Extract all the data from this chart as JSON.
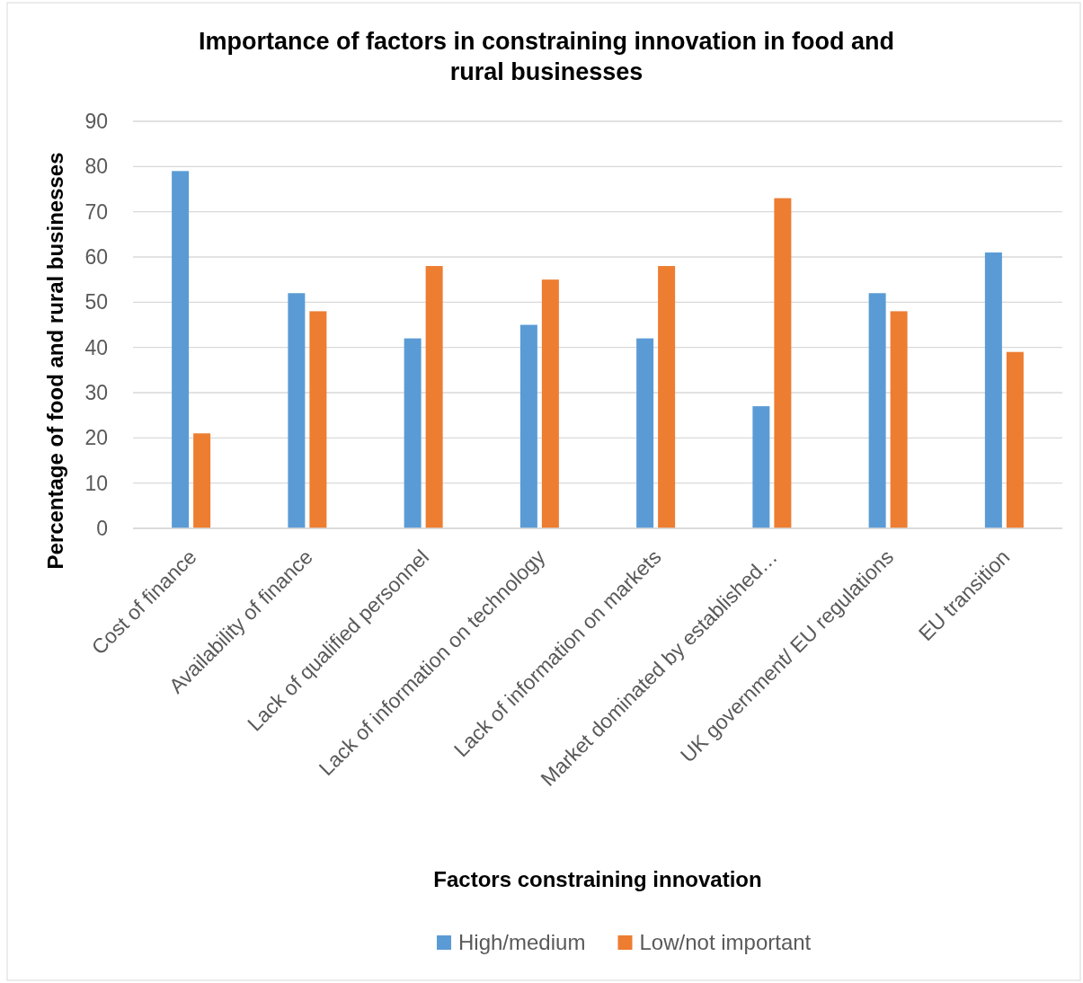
{
  "chart_data": {
    "type": "bar",
    "title": "Importance of factors in constraining innovation in food and rural businesses",
    "xlabel": "Factors constraining innovation",
    "ylabel": "Percentage of food and rural businesses",
    "categories": [
      "Cost of finance",
      "Availability of finance",
      "Lack of qualified personnel",
      "Lack of information on technology",
      "Lack of information on markets",
      "Market dominated by established…",
      "UK government/ EU regulations",
      "EU transition"
    ],
    "series": [
      {
        "name": "High/medium",
        "color": "#5b9bd5",
        "values": [
          79,
          52,
          42,
          45,
          42,
          27,
          52,
          61
        ]
      },
      {
        "name": "Low/not important",
        "color": "#ed7d31",
        "values": [
          21,
          48,
          58,
          55,
          58,
          73,
          48,
          39
        ]
      }
    ],
    "ylim": [
      0,
      90
    ],
    "yticks": [
      0,
      10,
      20,
      30,
      40,
      50,
      60,
      70,
      80,
      90
    ],
    "grid": "y",
    "legend": "bottom"
  }
}
